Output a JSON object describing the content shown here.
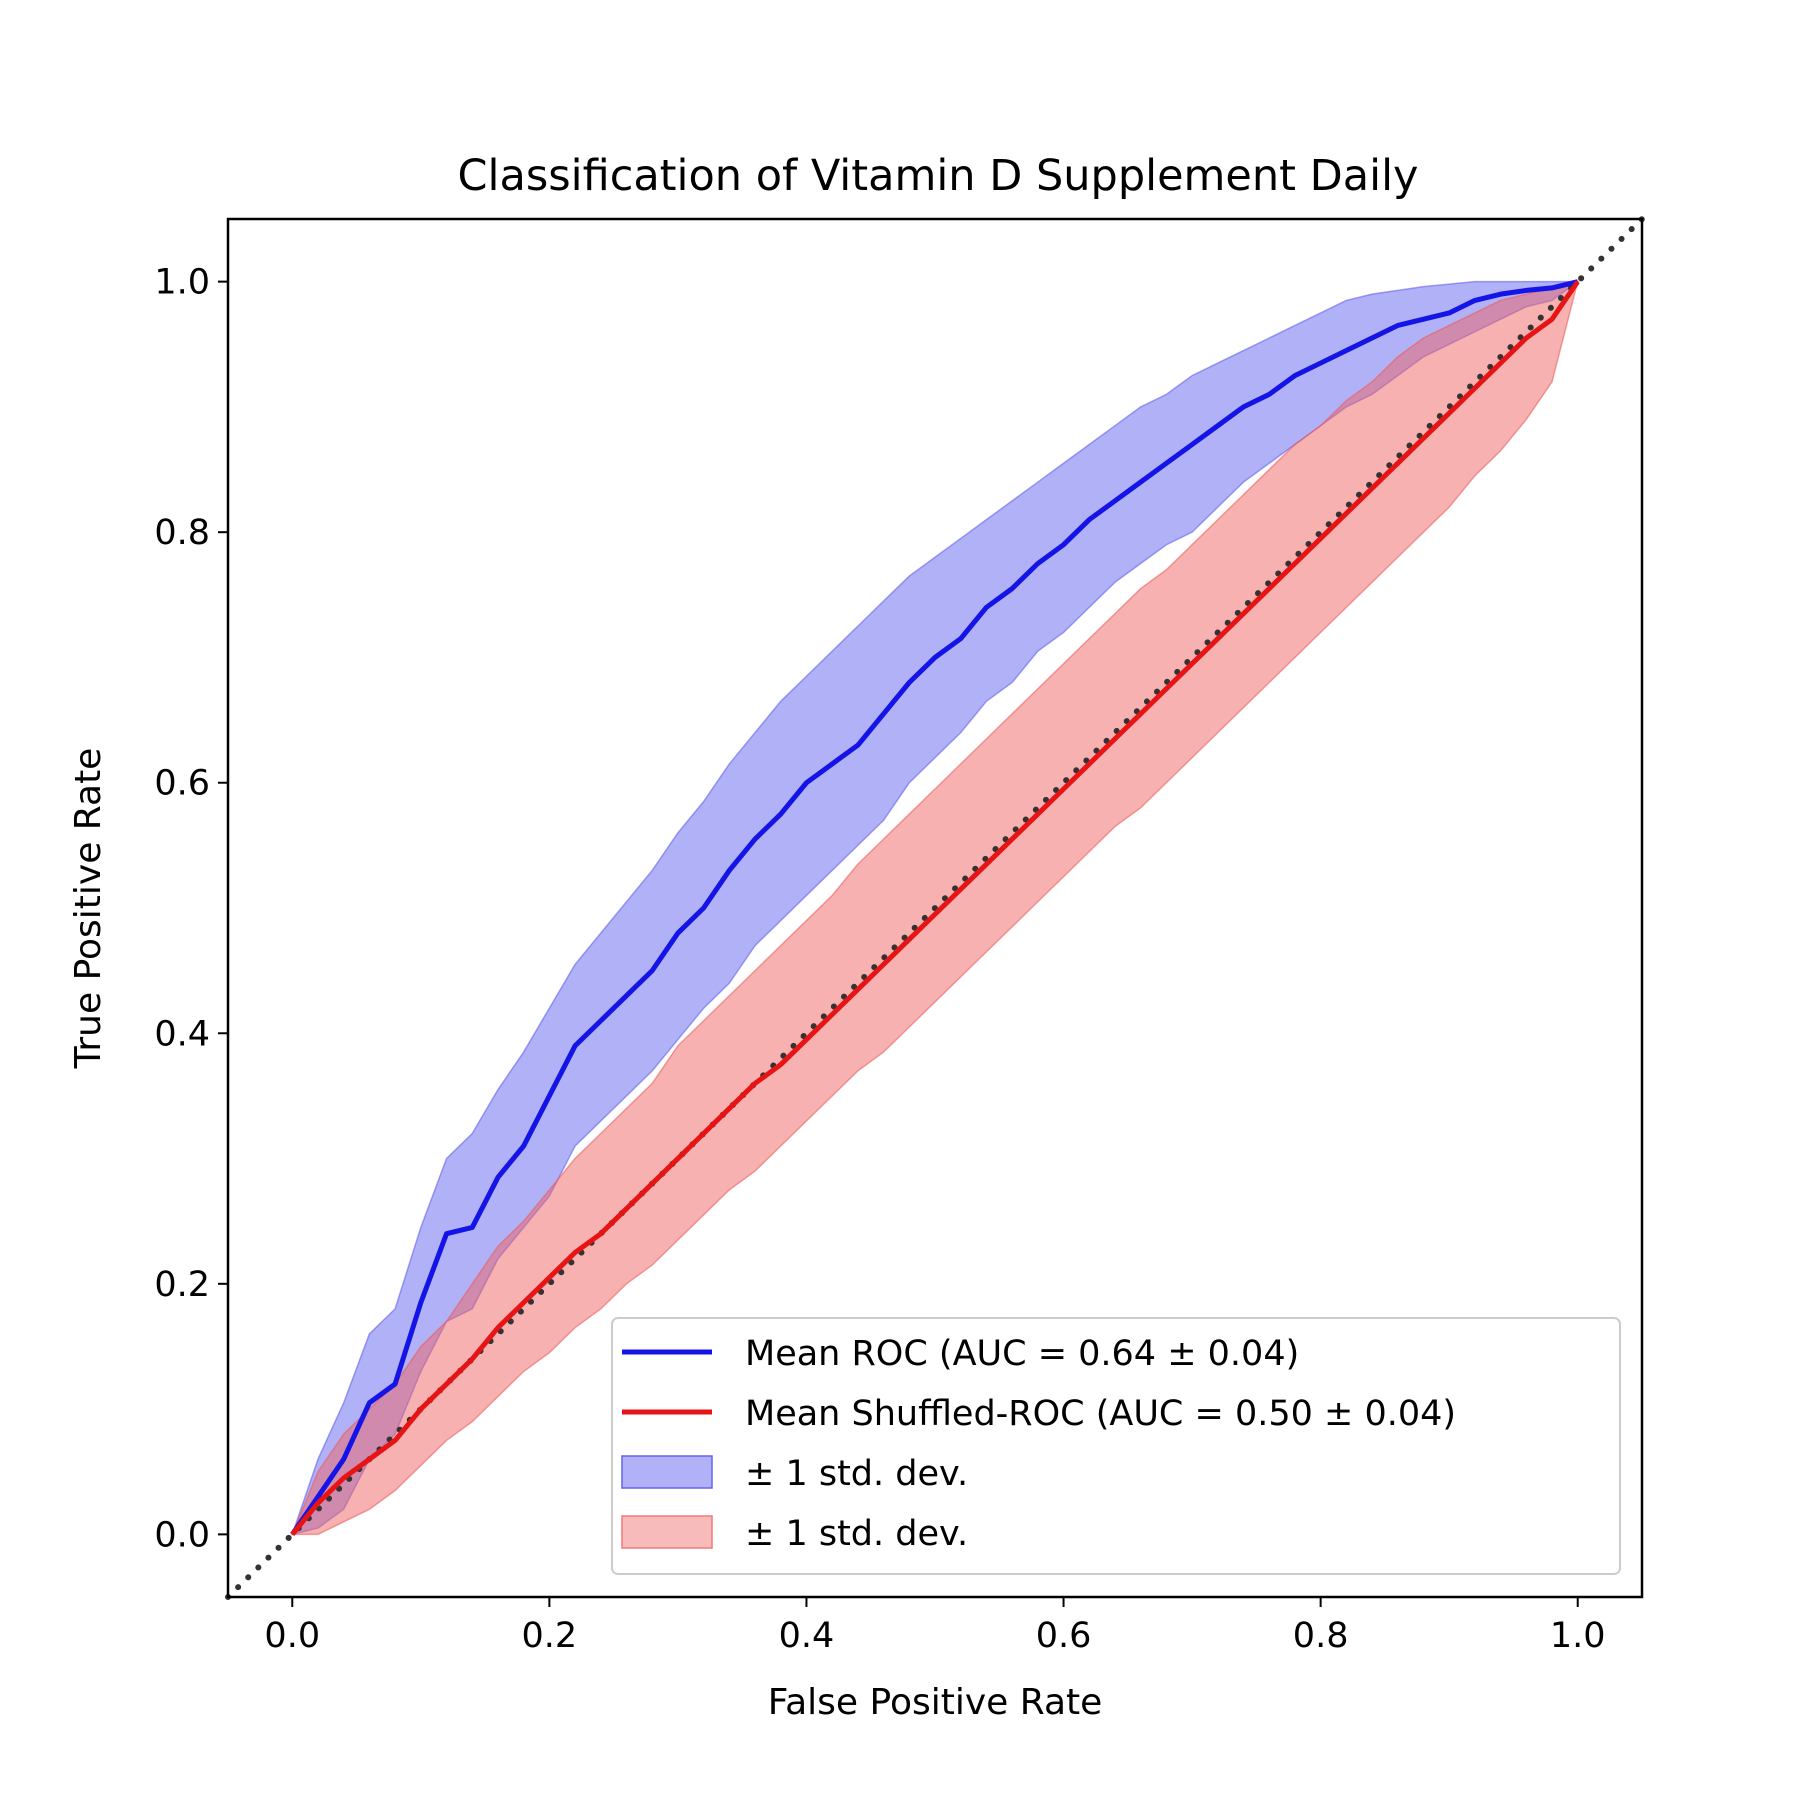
{
  "chart_data": {
    "type": "line",
    "title": "Classification of Vitamin D Supplement Daily",
    "xlabel": "False Positive Rate",
    "ylabel": "True Positive Rate",
    "xlim": [
      -0.05,
      1.05
    ],
    "ylim": [
      -0.05,
      1.05
    ],
    "xticks": [
      "0.0",
      "0.2",
      "0.4",
      "0.6",
      "0.8",
      "1.0"
    ],
    "yticks": [
      "0.0",
      "0.2",
      "0.4",
      "0.6",
      "0.8",
      "1.0"
    ],
    "grid": false,
    "legend_position": "lower-right",
    "x": [
      0.0,
      0.02,
      0.04,
      0.06,
      0.08,
      0.1,
      0.12,
      0.14,
      0.16,
      0.18,
      0.2,
      0.22,
      0.24,
      0.26,
      0.28,
      0.3,
      0.32,
      0.34,
      0.36,
      0.38,
      0.4,
      0.42,
      0.44,
      0.46,
      0.48,
      0.5,
      0.52,
      0.54,
      0.56,
      0.58,
      0.6,
      0.62,
      0.64,
      0.66,
      0.68,
      0.7,
      0.72,
      0.74,
      0.76,
      0.78,
      0.8,
      0.82,
      0.84,
      0.86,
      0.88,
      0.9,
      0.92,
      0.94,
      0.96,
      0.98,
      1.0
    ],
    "series": [
      {
        "name": "Mean ROC (AUC = 0.64 ± 0.04)",
        "color": "#1414e6",
        "values": [
          0.0,
          0.03,
          0.06,
          0.105,
          0.12,
          0.185,
          0.24,
          0.245,
          0.285,
          0.31,
          0.35,
          0.39,
          0.41,
          0.43,
          0.45,
          0.48,
          0.5,
          0.53,
          0.555,
          0.575,
          0.6,
          0.615,
          0.63,
          0.655,
          0.68,
          0.7,
          0.715,
          0.74,
          0.755,
          0.775,
          0.79,
          0.81,
          0.825,
          0.84,
          0.855,
          0.87,
          0.885,
          0.9,
          0.91,
          0.925,
          0.935,
          0.945,
          0.955,
          0.965,
          0.97,
          0.975,
          0.985,
          0.99,
          0.993,
          0.995,
          1.0
        ],
        "std_lower": [
          0.0,
          0.005,
          0.02,
          0.06,
          0.08,
          0.13,
          0.17,
          0.18,
          0.22,
          0.245,
          0.27,
          0.31,
          0.33,
          0.35,
          0.37,
          0.395,
          0.42,
          0.44,
          0.47,
          0.49,
          0.51,
          0.53,
          0.55,
          0.57,
          0.6,
          0.62,
          0.64,
          0.665,
          0.68,
          0.705,
          0.72,
          0.74,
          0.76,
          0.775,
          0.79,
          0.8,
          0.82,
          0.84,
          0.855,
          0.87,
          0.885,
          0.9,
          0.91,
          0.925,
          0.94,
          0.95,
          0.96,
          0.97,
          0.98,
          0.985,
          1.0
        ],
        "std_upper": [
          0.0,
          0.06,
          0.105,
          0.16,
          0.18,
          0.245,
          0.3,
          0.32,
          0.355,
          0.385,
          0.42,
          0.455,
          0.48,
          0.505,
          0.53,
          0.56,
          0.585,
          0.615,
          0.64,
          0.665,
          0.685,
          0.705,
          0.725,
          0.745,
          0.765,
          0.78,
          0.795,
          0.81,
          0.825,
          0.84,
          0.855,
          0.87,
          0.885,
          0.9,
          0.91,
          0.925,
          0.935,
          0.945,
          0.955,
          0.965,
          0.975,
          0.985,
          0.99,
          0.993,
          0.996,
          0.998,
          1.0,
          1.0,
          1.0,
          1.0,
          1.0
        ]
      },
      {
        "name": "Mean Shuffled-ROC (AUC = 0.50 ± 0.04)",
        "color": "#e61414",
        "values": [
          0.0,
          0.025,
          0.045,
          0.06,
          0.075,
          0.1,
          0.12,
          0.14,
          0.165,
          0.185,
          0.205,
          0.225,
          0.24,
          0.26,
          0.28,
          0.3,
          0.32,
          0.34,
          0.36,
          0.375,
          0.395,
          0.415,
          0.435,
          0.455,
          0.475,
          0.495,
          0.515,
          0.535,
          0.555,
          0.575,
          0.595,
          0.615,
          0.635,
          0.655,
          0.675,
          0.695,
          0.715,
          0.735,
          0.755,
          0.775,
          0.795,
          0.815,
          0.835,
          0.855,
          0.875,
          0.895,
          0.915,
          0.935,
          0.955,
          0.97,
          1.0
        ],
        "std_lower": [
          0.0,
          0.0,
          0.01,
          0.02,
          0.035,
          0.055,
          0.075,
          0.09,
          0.11,
          0.13,
          0.145,
          0.165,
          0.18,
          0.2,
          0.215,
          0.235,
          0.255,
          0.275,
          0.29,
          0.31,
          0.33,
          0.35,
          0.37,
          0.385,
          0.405,
          0.425,
          0.445,
          0.465,
          0.485,
          0.505,
          0.525,
          0.545,
          0.565,
          0.58,
          0.6,
          0.62,
          0.64,
          0.66,
          0.68,
          0.7,
          0.72,
          0.74,
          0.76,
          0.78,
          0.8,
          0.82,
          0.845,
          0.865,
          0.89,
          0.92,
          1.0
        ],
        "std_upper": [
          0.0,
          0.05,
          0.08,
          0.1,
          0.12,
          0.15,
          0.17,
          0.2,
          0.23,
          0.25,
          0.275,
          0.3,
          0.32,
          0.34,
          0.36,
          0.39,
          0.41,
          0.43,
          0.45,
          0.47,
          0.49,
          0.51,
          0.535,
          0.555,
          0.575,
          0.595,
          0.615,
          0.635,
          0.655,
          0.675,
          0.695,
          0.715,
          0.735,
          0.755,
          0.77,
          0.79,
          0.81,
          0.83,
          0.85,
          0.87,
          0.885,
          0.905,
          0.92,
          0.94,
          0.955,
          0.965,
          0.975,
          0.985,
          0.99,
          0.995,
          1.0
        ]
      }
    ],
    "reference_line": {
      "x": [
        -0.05,
        1.05
      ],
      "y": [
        -0.05,
        1.05
      ],
      "color": "#333333",
      "style": "dotted"
    },
    "legend": [
      {
        "label": "Mean ROC (AUC = 0.64 ± 0.04)",
        "kind": "line",
        "color": "#1414e6"
      },
      {
        "label": "Mean Shuffled-ROC (AUC = 0.50 ± 0.04)",
        "kind": "line",
        "color": "#e61414"
      },
      {
        "label": "± 1 std. dev.",
        "kind": "patch",
        "color": "#6464f0"
      },
      {
        "label": "± 1 std. dev.",
        "kind": "patch",
        "color": "#f07878"
      }
    ]
  }
}
